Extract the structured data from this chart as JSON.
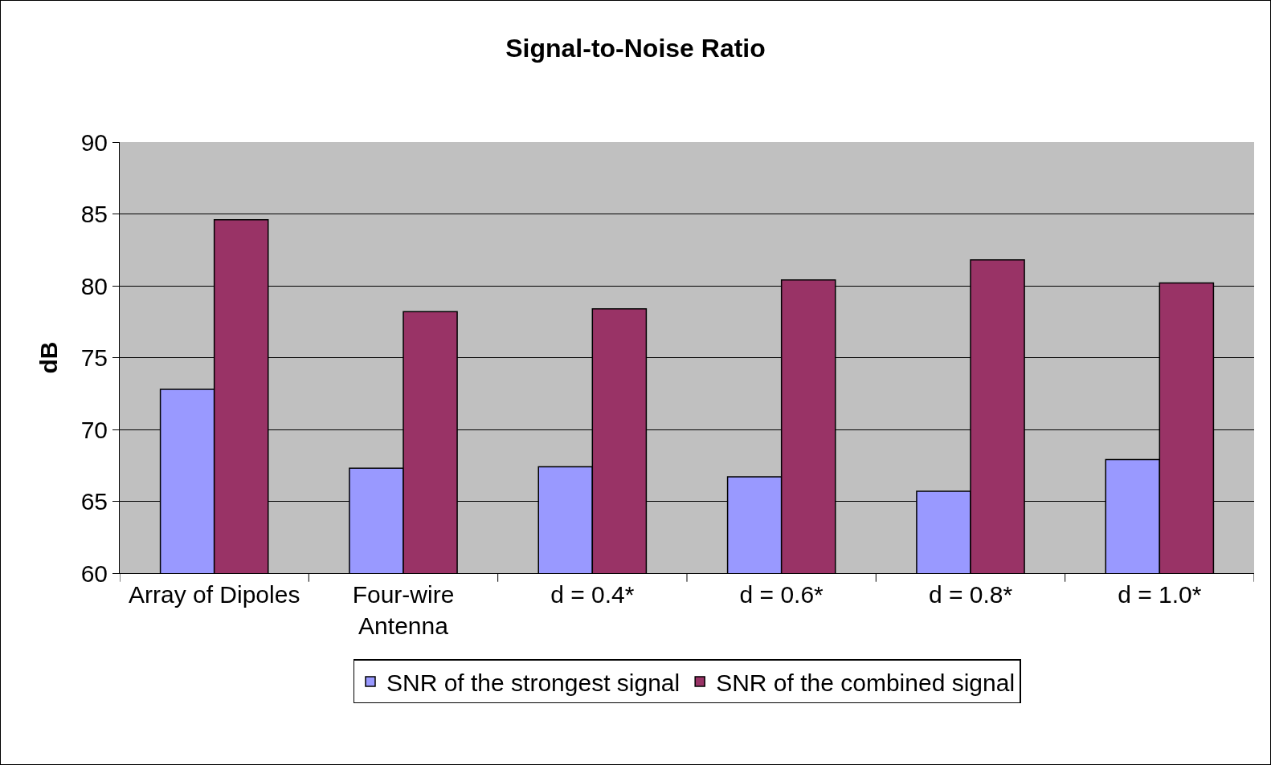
{
  "chart_data": {
    "type": "bar",
    "title": "Signal-to-Noise Ratio",
    "ylabel": "dB",
    "categories": [
      "Array of Dipoles",
      "Four-wire Antenna",
      "d = 0.4*",
      "d = 0.6*",
      "d = 0.8*",
      "d = 1.0*"
    ],
    "series": [
      {
        "name": "SNR of the strongest signal",
        "color": "#9999ff",
        "values": [
          72.8,
          67.3,
          67.4,
          66.7,
          65.7,
          67.9
        ]
      },
      {
        "name": "SNR of the combined signal",
        "color": "#993366",
        "values": [
          84.6,
          78.2,
          78.4,
          80.4,
          81.8,
          80.2
        ]
      }
    ],
    "ylim": [
      60,
      90
    ],
    "yticks": [
      60,
      65,
      70,
      75,
      80,
      85,
      90
    ],
    "grid": "y",
    "legend": "bottom"
  }
}
